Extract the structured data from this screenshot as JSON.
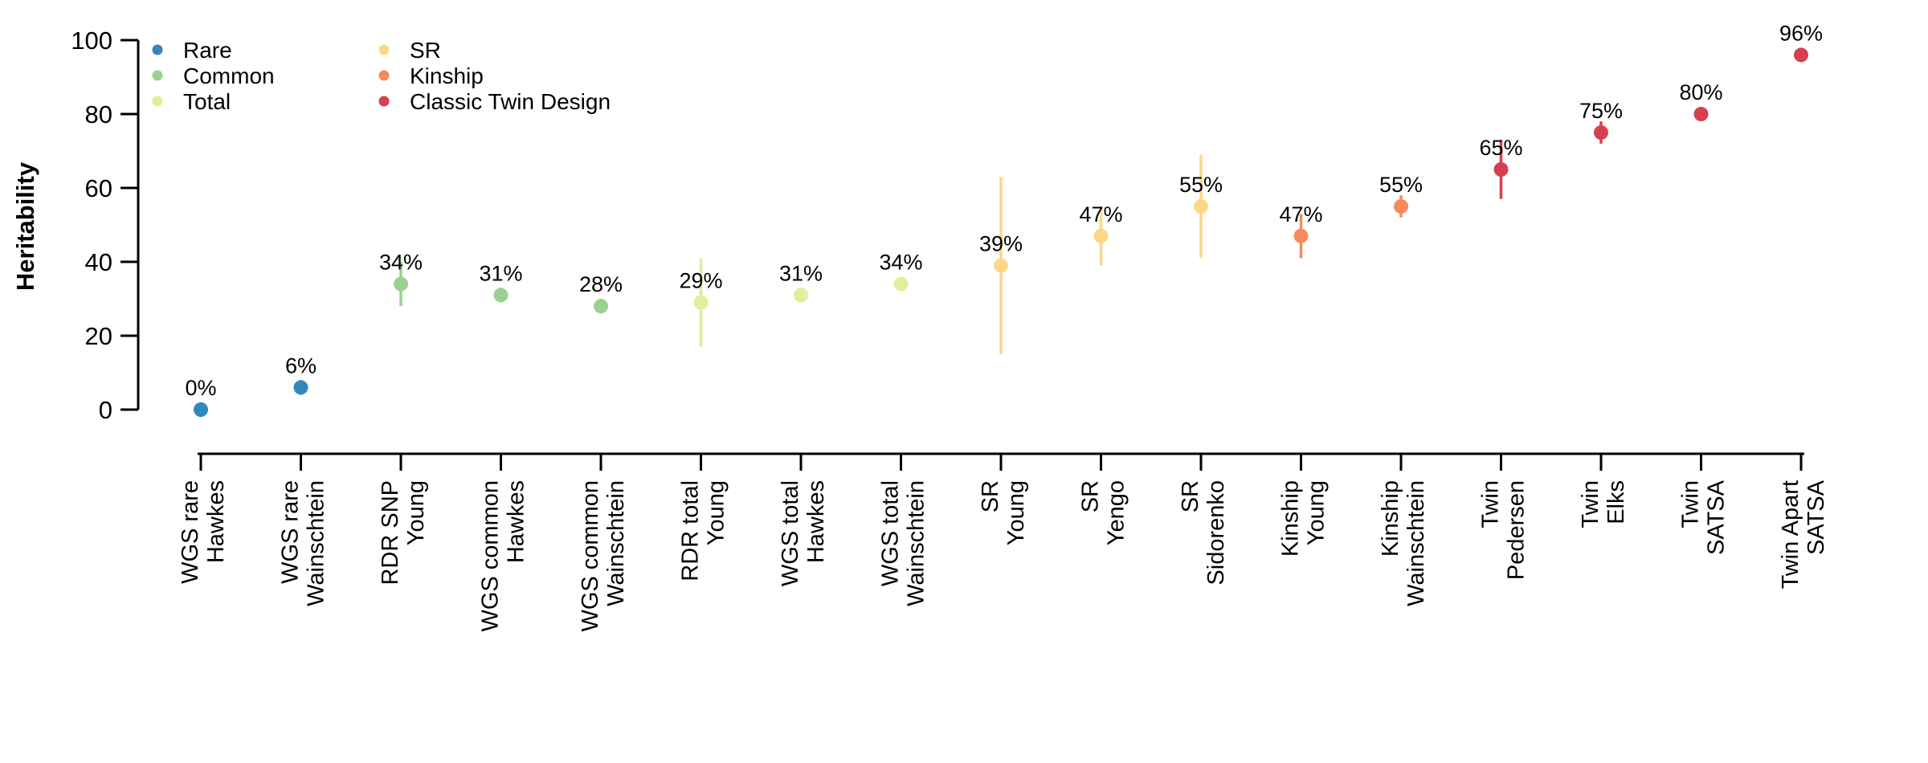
{
  "chart_data": {
    "type": "scatter",
    "title": "",
    "xlabel": "",
    "ylabel": "Heritability",
    "ylim": [
      0,
      100
    ],
    "yticks": [
      0,
      20,
      40,
      60,
      80,
      100
    ],
    "grid": "off",
    "legend_position": "top-left inside plot, two columns",
    "legend": [
      {
        "label": "Rare",
        "color": "#3288BD"
      },
      {
        "label": "Common",
        "color": "#99D18E"
      },
      {
        "label": "Total",
        "color": "#E1EE9B"
      },
      {
        "label": "SR",
        "color": "#FDD786"
      },
      {
        "label": "Kinship",
        "color": "#F68A5C"
      },
      {
        "label": "Classic Twin Design",
        "color": "#D63F50"
      }
    ],
    "points": [
      {
        "method": "WGS rare",
        "study": "Hawkes",
        "group": "Rare",
        "value": 0,
        "label": "0%",
        "err_lo": -2,
        "err_hi": 2
      },
      {
        "method": "WGS rare",
        "study": "Wainschtein",
        "group": "Rare",
        "value": 6,
        "label": "6%",
        "err_lo": 4,
        "err_hi": 8
      },
      {
        "method": "RDR SNP",
        "study": "Young",
        "group": "Common",
        "value": 34,
        "label": "34%",
        "err_lo": 28,
        "err_hi": 40
      },
      {
        "method": "WGS common",
        "study": "Hawkes",
        "group": "Common",
        "value": 31,
        "label": "31%",
        "err_lo": 29,
        "err_hi": 33
      },
      {
        "method": "WGS common",
        "study": "Wainschtein",
        "group": "Common",
        "value": 28,
        "label": "28%",
        "err_lo": 26,
        "err_hi": 30
      },
      {
        "method": "RDR total",
        "study": "Young",
        "group": "Total",
        "value": 29,
        "label": "29%",
        "err_lo": 17,
        "err_hi": 41
      },
      {
        "method": "WGS total",
        "study": "Hawkes",
        "group": "Total",
        "value": 31,
        "label": "31%",
        "err_lo": 29,
        "err_hi": 33
      },
      {
        "method": "WGS total",
        "study": "Wainschtein",
        "group": "Total",
        "value": 34,
        "label": "34%",
        "err_lo": 32,
        "err_hi": 36
      },
      {
        "method": "SR",
        "study": "Young",
        "group": "SR",
        "value": 39,
        "label": "39%",
        "err_lo": 15,
        "err_hi": 63
      },
      {
        "method": "SR",
        "study": "Yengo",
        "group": "SR",
        "value": 47,
        "label": "47%",
        "err_lo": 39,
        "err_hi": 55
      },
      {
        "method": "SR",
        "study": "Sidorenko",
        "group": "SR",
        "value": 55,
        "label": "55%",
        "err_lo": 41,
        "err_hi": 69
      },
      {
        "method": "Kinship",
        "study": "Young",
        "group": "Kinship",
        "value": 47,
        "label": "47%",
        "err_lo": 41,
        "err_hi": 53
      },
      {
        "method": "Kinship",
        "study": "Wainschtein",
        "group": "Kinship",
        "value": 55,
        "label": "55%",
        "err_lo": 52,
        "err_hi": 58
      },
      {
        "method": "Twin",
        "study": "Pedersen",
        "group": "Classic Twin Design",
        "value": 65,
        "label": "65%",
        "err_lo": 57,
        "err_hi": 73
      },
      {
        "method": "Twin",
        "study": "Elks",
        "group": "Classic Twin Design",
        "value": 75,
        "label": "75%",
        "err_lo": 72,
        "err_hi": 78
      },
      {
        "method": "Twin",
        "study": "SATSA",
        "group": "Classic Twin Design",
        "value": 80,
        "label": "80%",
        "err_lo": 80,
        "err_hi": 80
      },
      {
        "method": "Twin Apart",
        "study": "SATSA",
        "group": "Classic Twin Design",
        "value": 96,
        "label": "96%",
        "err_lo": 96,
        "err_hi": 96
      }
    ]
  }
}
